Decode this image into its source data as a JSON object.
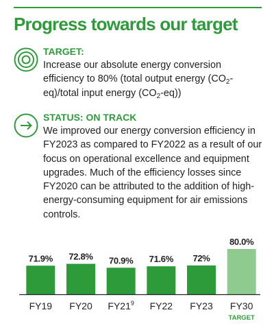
{
  "title": "Progress towards our target",
  "target": {
    "heading": "TARGET:",
    "text_parts": [
      "Increase our absolute energy conversion efficiency to 80% (total output energy (CO",
      "2",
      "-eq)/total input energy (CO",
      "2",
      "-eq))"
    ],
    "icon": "target-icon"
  },
  "status": {
    "heading": "STATUS: ON TRACK",
    "text": "We improved our energy conversion efficiency in FY2023 as compared to FY2022 as a result of our focus on operational excellence and equipment upgrades. Much of the efficiency losses since FY2020 can be attributed to the addition of high-energy-consuming equipment for air emissions controls.",
    "icon": "arrow-right-circle-icon"
  },
  "colors": {
    "accent": "#2e9b3b",
    "bar": "#2e9b3b",
    "target_bar": "#8fcb8f",
    "baseline": "#222222"
  },
  "chart_data": {
    "type": "bar",
    "categories": [
      "FY19",
      "FY20",
      "FY21",
      "FY22",
      "FY23",
      "FY30"
    ],
    "category_superscripts": [
      "",
      "",
      "9",
      "",
      "",
      ""
    ],
    "values": [
      71.9,
      72.8,
      70.9,
      71.6,
      72,
      80.0
    ],
    "value_labels": [
      "71.9%",
      "72.8%",
      "70.9%",
      "71.6%",
      "72%",
      "80.0%"
    ],
    "target_index": 5,
    "target_tag": "TARGET",
    "title": "",
    "xlabel": "",
    "ylabel": "",
    "ylim": [
      58,
      80
    ]
  }
}
